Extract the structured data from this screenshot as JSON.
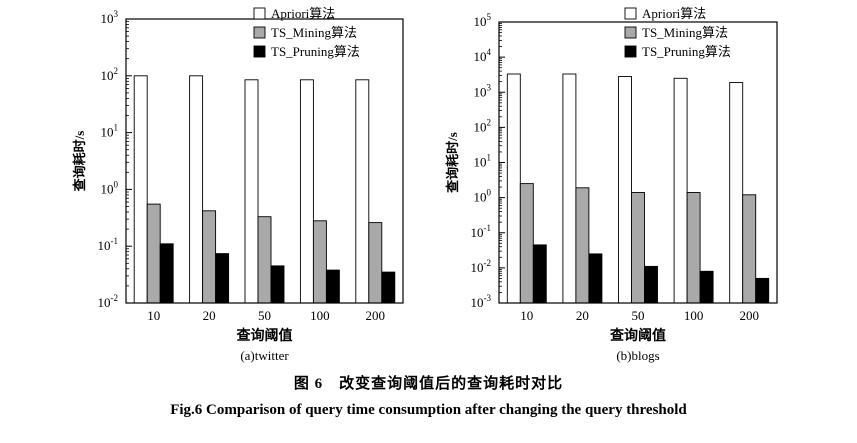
{
  "caption": {
    "cn": "图 6　改变查询阈值后的查询耗时对比",
    "en": "Fig.6    Comparison of query time consumption after changing the query threshold"
  },
  "chart_data": [
    {
      "type": "bar",
      "subtitle": "(a)twitter",
      "xlabel": "查询阈值",
      "ylabel": "查询耗时/s",
      "log_scale": true,
      "ylim_exp": [
        -2,
        3
      ],
      "yticks": [
        {
          "base": "10",
          "exp": "-2"
        },
        {
          "base": "10",
          "exp": "-1"
        },
        {
          "base": "10",
          "exp": "0"
        },
        {
          "base": "10",
          "exp": "1"
        },
        {
          "base": "10",
          "exp": "2"
        },
        {
          "base": "10",
          "exp": "3"
        }
      ],
      "categories": [
        "10",
        "20",
        "50",
        "100",
        "200"
      ],
      "series": [
        {
          "name": "Apriori算法",
          "fill": "#ffffff",
          "values": [
            100,
            100,
            85,
            85,
            85
          ]
        },
        {
          "name": "TS_Mining算法",
          "fill": "#a9a9a9",
          "values": [
            0.55,
            0.42,
            0.33,
            0.28,
            0.26
          ]
        },
        {
          "name": "TS_Pruning算法",
          "fill": "#000000",
          "values": [
            0.11,
            0.074,
            0.045,
            0.038,
            0.035
          ]
        }
      ],
      "legend": "top-right",
      "grid": false
    },
    {
      "type": "bar",
      "subtitle": "(b)blogs",
      "xlabel": "查询阈值",
      "ylabel": "查询耗时/s",
      "log_scale": true,
      "ylim_exp": [
        -3,
        5
      ],
      "yticks": [
        {
          "base": "10",
          "exp": "-3"
        },
        {
          "base": "10",
          "exp": "-2"
        },
        {
          "base": "10",
          "exp": "-1"
        },
        {
          "base": "10",
          "exp": "0"
        },
        {
          "base": "10",
          "exp": "1"
        },
        {
          "base": "10",
          "exp": "2"
        },
        {
          "base": "10",
          "exp": "3"
        },
        {
          "base": "10",
          "exp": "4"
        },
        {
          "base": "10",
          "exp": "5"
        }
      ],
      "categories": [
        "10",
        "20",
        "50",
        "100",
        "200"
      ],
      "series": [
        {
          "name": "Apriori算法",
          "fill": "#ffffff",
          "values": [
            3300,
            3300,
            2800,
            2500,
            1900
          ]
        },
        {
          "name": "TS_Mining算法",
          "fill": "#a9a9a9",
          "values": [
            2.5,
            1.9,
            1.4,
            1.4,
            1.2
          ]
        },
        {
          "name": "TS_Pruning算法",
          "fill": "#000000",
          "values": [
            0.045,
            0.025,
            0.011,
            0.008,
            0.005
          ]
        }
      ],
      "legend": "top-right",
      "grid": false
    }
  ]
}
